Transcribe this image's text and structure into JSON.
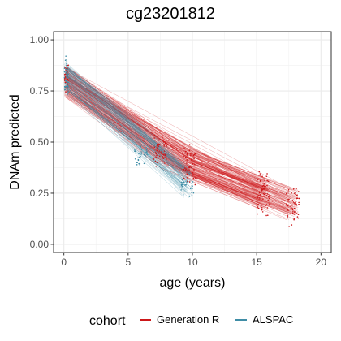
{
  "chart_data": {
    "type": "scatter",
    "title": "cg23201812",
    "xlabel": "age (years)",
    "ylabel": "DNAm predicted",
    "xlim": [
      -0.8,
      20.8
    ],
    "ylim": [
      -0.04,
      1.04
    ],
    "xticks": [
      0,
      5,
      10,
      15,
      20
    ],
    "xtick_labels": [
      "0",
      "5",
      "10",
      "15",
      "20"
    ],
    "yticks": [
      0.0,
      0.25,
      0.5,
      0.75,
      1.0
    ],
    "ytick_labels": [
      "0.00",
      "0.25",
      "0.50",
      "0.75",
      "1.00"
    ],
    "grid": true,
    "legend": {
      "title": "cohort",
      "position": "bottom",
      "entries": [
        "Generation R",
        "ALSPAC"
      ]
    },
    "series": [
      {
        "name": "Generation R",
        "color": "#CC1719",
        "trend": {
          "x": [
            0,
            6,
            7.5,
            9.8,
            15.5,
            17.8
          ],
          "y": [
            0.8,
            0.5,
            0.45,
            0.39,
            0.24,
            0.2
          ]
        },
        "clusters": [
          {
            "x": 0.05,
            "y_min": 0.72,
            "y_max": 0.9
          },
          {
            "x": 7.5,
            "y_min": 0.38,
            "y_max": 0.55
          },
          {
            "x": 9.8,
            "y_min": 0.28,
            "y_max": 0.5
          },
          {
            "x": 15.5,
            "y_min": 0.12,
            "y_max": 0.37
          },
          {
            "x": 17.8,
            "y_min": 0.08,
            "y_max": 0.3
          }
        ]
      },
      {
        "name": "ALSPAC",
        "color": "#3F8DA6",
        "trend": {
          "x": [
            0,
            7,
            9.8
          ],
          "y": [
            0.81,
            0.46,
            0.29
          ]
        },
        "clusters": [
          {
            "x": 0.05,
            "y_min": 0.68,
            "y_max": 0.95
          },
          {
            "x": 6.0,
            "y_min": 0.36,
            "y_max": 0.5
          },
          {
            "x": 9.6,
            "y_min": 0.22,
            "y_max": 0.36
          }
        ]
      }
    ]
  }
}
